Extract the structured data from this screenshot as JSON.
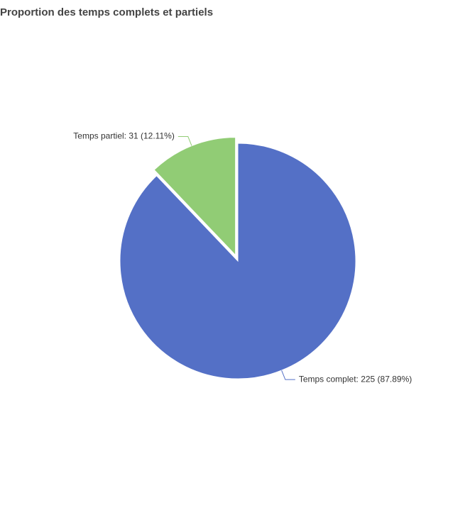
{
  "chart_data": {
    "type": "pie",
    "title": "Proportion des temps complets et partiels",
    "start_angle_deg": 0,
    "slices": [
      {
        "name": "Temps complet",
        "value": 225,
        "percent": 87.89,
        "color": "#5470c6",
        "label": "Temps complet: 225 (87.89%)",
        "exploded": false
      },
      {
        "name": "Temps partiel",
        "value": 31,
        "percent": 12.11,
        "color": "#91cc75",
        "label": "Temps partiel: 31 (12.11%)",
        "exploded": true
      }
    ]
  }
}
